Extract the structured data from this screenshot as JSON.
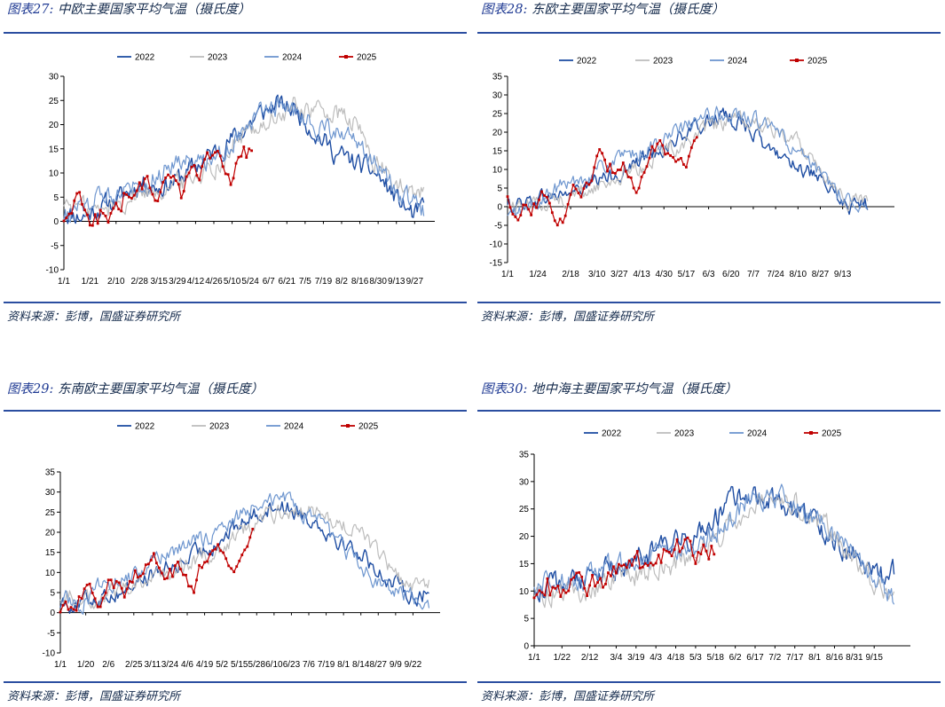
{
  "colors": {
    "2022": "#1f4ea3",
    "2023": "#bdbdbd",
    "2024": "#6e96cf",
    "2025": "#c00000"
  },
  "source_text": "资料来源：彭博，国盛证券研究所",
  "panels": [
    {
      "label": "图表27:",
      "title": "中欧主要国家平均气温（摄氏度）",
      "chart_data": {
        "type": "line",
        "legend": [
          "2022",
          "2023",
          "2024",
          "2025"
        ],
        "ylim": [
          -10,
          30
        ],
        "yticks": [
          -10,
          -5,
          0,
          5,
          10,
          15,
          20,
          25,
          30
        ],
        "x_tick_labels": [
          "1/1",
          "1/21",
          "2/10",
          "2/28",
          "3/15",
          "3/29",
          "4/12",
          "4/26",
          "5/10",
          "5/24",
          "6/7",
          "6/21",
          "7/5",
          "7/19",
          "8/2",
          "8/16",
          "8/30",
          "9/13",
          "9/27"
        ],
        "x_ticks_doy": [
          1,
          21,
          41,
          59,
          74,
          88,
          102,
          116,
          130,
          144,
          158,
          172,
          186,
          200,
          214,
          228,
          242,
          256,
          270
        ],
        "xmax": 280,
        "series": [
          {
            "name": "2022",
            "doy": [
              1,
              15,
              30,
              45,
              60,
              75,
              90,
              105,
              120,
              135,
              150,
              165,
              180,
              195,
              210,
              225,
              240,
              255,
              270,
              277
            ],
            "values": [
              2,
              1,
              3,
              5,
              8,
              7,
              9,
              12,
              15,
              18,
              22,
              24,
              23,
              18,
              14,
              12,
              10,
              5,
              1,
              3
            ]
          },
          {
            "name": "2023",
            "doy": [
              1,
              15,
              30,
              45,
              60,
              75,
              90,
              105,
              120,
              135,
              150,
              165,
              180,
              195,
              210,
              225,
              240,
              255,
              270,
              277
            ],
            "values": [
              4,
              3,
              2,
              4,
              6,
              7,
              8,
              10,
              12,
              17,
              20,
              21,
              24,
              23,
              22,
              20,
              12,
              8,
              5,
              6
            ]
          },
          {
            "name": "2024",
            "doy": [
              1,
              15,
              30,
              45,
              60,
              75,
              90,
              105,
              120,
              135,
              150,
              165,
              180,
              195,
              210,
              225,
              240,
              255,
              270,
              277
            ],
            "values": [
              1,
              3,
              5,
              7,
              8,
              10,
              13,
              12,
              14,
              18,
              22,
              24,
              22,
              20,
              18,
              16,
              12,
              6,
              4,
              2
            ]
          },
          {
            "name": "2025",
            "doy": [
              1,
              10,
              20,
              30,
              40,
              50,
              60,
              70,
              80,
              90,
              100,
              110,
              120,
              130,
              140,
              145
            ],
            "values": [
              1,
              5,
              0,
              2,
              1,
              6,
              10,
              5,
              10,
              5,
              10,
              12,
              17,
              10,
              13,
              15
            ]
          }
        ]
      }
    },
    {
      "label": "图表28:",
      "title": "东欧主要国家平均气温（摄氏度）",
      "chart_data": {
        "type": "line",
        "legend": [
          "2022",
          "2023",
          "2024",
          "2025"
        ],
        "ylim": [
          -15,
          35
        ],
        "yticks": [
          -15,
          -10,
          -5,
          0,
          5,
          10,
          15,
          20,
          25,
          30,
          35
        ],
        "x_tick_labels": [
          "1/1",
          "1/24",
          "2/18",
          "3/10",
          "3/27",
          "4/13",
          "4/30",
          "5/17",
          "6/3",
          "6/20",
          "7/7",
          "7/24",
          "8/10",
          "8/27",
          "9/13"
        ],
        "x_ticks_doy": [
          1,
          24,
          49,
          69,
          86,
          103,
          120,
          137,
          154,
          171,
          188,
          205,
          222,
          239,
          256
        ],
        "xmax": 290,
        "series": [
          {
            "name": "2022",
            "doy": [
              1,
              20,
              40,
              60,
              80,
              100,
              120,
              140,
              160,
              180,
              200,
              220,
              240,
              260,
              275
            ],
            "values": [
              0,
              2,
              3,
              5,
              8,
              12,
              16,
              20,
              24,
              23,
              15,
              12,
              6,
              0,
              1
            ]
          },
          {
            "name": "2023",
            "doy": [
              1,
              20,
              40,
              60,
              80,
              100,
              120,
              140,
              160,
              180,
              200,
              220,
              240,
              260,
              275
            ],
            "values": [
              0,
              1,
              2,
              4,
              7,
              10,
              15,
              18,
              22,
              23,
              21,
              18,
              10,
              2,
              2
            ]
          },
          {
            "name": "2024",
            "doy": [
              1,
              20,
              40,
              60,
              80,
              100,
              120,
              140,
              160,
              180,
              200,
              220,
              240,
              260,
              275
            ],
            "values": [
              -3,
              0,
              5,
              8,
              12,
              14,
              18,
              22,
              25,
              24,
              22,
              15,
              8,
              2,
              1
            ]
          },
          {
            "name": "2025",
            "doy": [
              1,
              10,
              20,
              30,
              40,
              50,
              60,
              70,
              80,
              90,
              100,
              110,
              120,
              130,
              140,
              145
            ],
            "values": [
              2,
              -1,
              0,
              4,
              -6,
              3,
              5,
              13,
              10,
              12,
              1,
              14,
              16,
              10,
              14,
              17
            ]
          }
        ]
      }
    },
    {
      "label": "图表29:",
      "title": "东南欧主要国家平均气温（摄氏度）",
      "chart_data": {
        "type": "line",
        "legend": [
          "2022",
          "2023",
          "2024",
          "2025"
        ],
        "ylim": [
          -10,
          35
        ],
        "yticks": [
          -10,
          -5,
          0,
          5,
          10,
          15,
          20,
          25,
          30,
          35
        ],
        "x_tick_labels": [
          "1/1",
          "1/20",
          "2/6",
          "2/25",
          "3/11",
          "3/24",
          "4/6",
          "4/19",
          "5/2",
          "5/15",
          "5/28",
          "6/10",
          "6/23",
          "7/6",
          "7/19",
          "8/1",
          "8/14",
          "8/27",
          "9/9",
          "9/22"
        ],
        "x_ticks_doy": [
          1,
          20,
          37,
          56,
          70,
          83,
          96,
          109,
          122,
          135,
          148,
          161,
          174,
          187,
          200,
          213,
          226,
          239,
          252,
          265
        ],
        "xmax": 280,
        "series": [
          {
            "name": "2022",
            "doy": [
              1,
              15,
              30,
              45,
              60,
              75,
              90,
              105,
              120,
              135,
              150,
              165,
              180,
              195,
              210,
              225,
              240,
              255,
              270,
              277
            ],
            "values": [
              3,
              2,
              4,
              5,
              8,
              10,
              12,
              15,
              18,
              22,
              25,
              27,
              25,
              22,
              18,
              15,
              10,
              6,
              4,
              5
            ]
          },
          {
            "name": "2023",
            "doy": [
              1,
              15,
              30,
              45,
              60,
              75,
              90,
              105,
              120,
              135,
              150,
              165,
              180,
              195,
              210,
              225,
              240,
              255,
              270,
              277
            ],
            "values": [
              5,
              4,
              3,
              6,
              8,
              9,
              11,
              13,
              16,
              20,
              23,
              25,
              26,
              24,
              22,
              20,
              14,
              8,
              6,
              8
            ]
          },
          {
            "name": "2024",
            "doy": [
              1,
              15,
              30,
              45,
              60,
              75,
              90,
              105,
              120,
              135,
              150,
              165,
              180,
              195,
              210,
              225,
              240,
              255,
              270,
              277
            ],
            "values": [
              4,
              2,
              6,
              8,
              10,
              13,
              16,
              18,
              20,
              24,
              28,
              29,
              25,
              22,
              17,
              12,
              7,
              5,
              3,
              2
            ]
          },
          {
            "name": "2025",
            "doy": [
              1,
              10,
              20,
              30,
              40,
              50,
              60,
              70,
              80,
              90,
              100,
              110,
              120,
              130,
              140,
              145
            ],
            "values": [
              2,
              1,
              8,
              0,
              8,
              5,
              10,
              16,
              8,
              12,
              4,
              15,
              18,
              13,
              16,
              18
            ]
          }
        ]
      }
    },
    {
      "label": "图表30:",
      "title": "地中海主要国家平均气温（摄氏度）",
      "chart_data": {
        "type": "line",
        "legend": [
          "2022",
          "2023",
          "2024",
          "2025"
        ],
        "ylim": [
          0,
          35
        ],
        "yticks": [
          0,
          5,
          10,
          15,
          20,
          25,
          30,
          35
        ],
        "x_tick_labels": [
          "1/1",
          "1/22",
          "2/12",
          "3/4",
          "3/19",
          "4/3",
          "4/18",
          "5/3",
          "5/18",
          "6/2",
          "6/17",
          "7/2",
          "7/17",
          "8/1",
          "8/16",
          "8/31",
          "9/15"
        ],
        "x_ticks_doy": [
          1,
          22,
          43,
          63,
          78,
          93,
          108,
          123,
          138,
          153,
          168,
          183,
          198,
          213,
          228,
          243,
          258
        ],
        "xmax": 280,
        "series": [
          {
            "name": "2022",
            "doy": [
              1,
              15,
              30,
              45,
              60,
              75,
              90,
              105,
              120,
              135,
              150,
              165,
              180,
              195,
              210,
              225,
              240,
              255,
              270,
              273
            ],
            "values": [
              10,
              11,
              12,
              13,
              14,
              15,
              17,
              18,
              20,
              23,
              26,
              28,
              27,
              25,
              23,
              20,
              17,
              14,
              12,
              13
            ]
          },
          {
            "name": "2023",
            "doy": [
              1,
              15,
              30,
              45,
              60,
              75,
              90,
              105,
              120,
              135,
              150,
              165,
              180,
              195,
              210,
              225,
              240,
              255,
              270,
              273
            ],
            "values": [
              9,
              10,
              9,
              10,
              12,
              13,
              14,
              15,
              16,
              19,
              23,
              26,
              29,
              27,
              24,
              21,
              17,
              13,
              10,
              9
            ]
          },
          {
            "name": "2024",
            "doy": [
              1,
              15,
              30,
              45,
              60,
              75,
              90,
              105,
              120,
              135,
              150,
              165,
              180,
              195,
              210,
              225,
              240,
              255,
              270,
              273
            ],
            "values": [
              11,
              12,
              12,
              13,
              14,
              15,
              16,
              17,
              18,
              20,
              24,
              27,
              28,
              26,
              24,
              21,
              17,
              13,
              10,
              8
            ]
          },
          {
            "name": "2025",
            "doy": [
              1,
              10,
              20,
              30,
              40,
              50,
              60,
              70,
              80,
              90,
              100,
              110,
              120,
              130,
              138
            ],
            "values": [
              9,
              12,
              8,
              11,
              11,
              12,
              13,
              14,
              14,
              15,
              16,
              17,
              17,
              17,
              19
            ]
          }
        ]
      }
    }
  ]
}
